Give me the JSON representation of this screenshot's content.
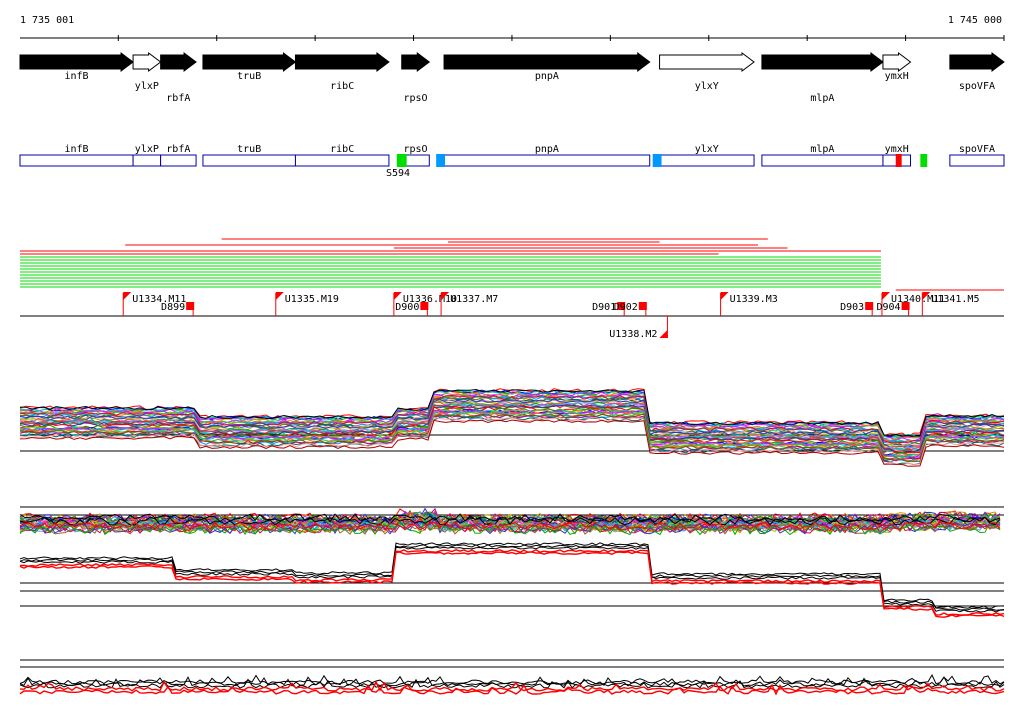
{
  "ruler": {
    "start_label": "1 735 001",
    "end_label": "1 745 000",
    "start": 1735001,
    "end": 1745000
  },
  "colors": {
    "gene_fill": "#000000",
    "gene_hollow": "#ffffff",
    "gene_box": "#0000aa",
    "mark_green": "#00dd00",
    "mark_blue": "#0099ff",
    "mark_red": "#ff0000",
    "flag_red": "#ff0000"
  },
  "genes": [
    {
      "name": "infB",
      "start": 1735001,
      "end": 1736150,
      "strand": "+",
      "filled": true,
      "label_row": 1
    },
    {
      "name": "ylxP",
      "start": 1736150,
      "end": 1736430,
      "strand": "+",
      "filled": false,
      "label_row": 2
    },
    {
      "name": "rbfA",
      "start": 1736430,
      "end": 1736790,
      "strand": "+",
      "filled": true,
      "label_row": 3
    },
    {
      "name": "truB",
      "start": 1736860,
      "end": 1737800,
      "strand": "+",
      "filled": true,
      "label_row": 1
    },
    {
      "name": "ribC",
      "start": 1737800,
      "end": 1738750,
      "strand": "+",
      "filled": true,
      "label_row": 2
    },
    {
      "name": "rpsO",
      "start": 1738880,
      "end": 1739160,
      "strand": "+",
      "filled": true,
      "label_row": 3
    },
    {
      "name": "pnpA",
      "start": 1739310,
      "end": 1741400,
      "strand": "+",
      "filled": true,
      "label_row": 1
    },
    {
      "name": "ylxY",
      "start": 1741500,
      "end": 1742460,
      "strand": "+",
      "filled": false,
      "label_row": 2
    },
    {
      "name": "mlpA",
      "start": 1742540,
      "end": 1743770,
      "strand": "+",
      "filled": true,
      "label_row": 3
    },
    {
      "name": "ymxH",
      "start": 1743770,
      "end": 1744050,
      "strand": "+",
      "filled": false,
      "label_row": 1
    },
    {
      "name": "spoVFA",
      "start": 1744450,
      "end": 1745000,
      "strand": "+",
      "filled": true,
      "label_row": 2
    }
  ],
  "box_marks": [
    {
      "start": 1738830,
      "end": 1738930,
      "color": "green"
    },
    {
      "start": 1739230,
      "end": 1739320,
      "color": "blue"
    },
    {
      "start": 1741430,
      "end": 1741520,
      "color": "blue"
    },
    {
      "start": 1743900,
      "end": 1743960,
      "color": "red"
    },
    {
      "start": 1744150,
      "end": 1744220,
      "color": "green"
    }
  ],
  "box_labels": [
    {
      "text": "S594",
      "pos": 1738720
    }
  ],
  "feature_lines": [
    {
      "start": 1737050,
      "end": 1742600,
      "color": "red"
    },
    {
      "start": 1739350,
      "end": 1741500,
      "color": "red"
    },
    {
      "start": 1736070,
      "end": 1742500,
      "color": "red"
    },
    {
      "start": 1738800,
      "end": 1742800,
      "color": "red"
    },
    {
      "start": 1735001,
      "end": 1743750,
      "color": "red"
    },
    {
      "start": 1735001,
      "end": 1742100,
      "color": "red"
    },
    {
      "start": 1735001,
      "end": 1743750,
      "color": "green"
    },
    {
      "start": 1735001,
      "end": 1743750,
      "color": "green"
    },
    {
      "start": 1735001,
      "end": 1743750,
      "color": "green"
    },
    {
      "start": 1735001,
      "end": 1743750,
      "color": "green"
    },
    {
      "start": 1735001,
      "end": 1743750,
      "color": "green"
    },
    {
      "start": 1735001,
      "end": 1743750,
      "color": "green"
    },
    {
      "start": 1735001,
      "end": 1743750,
      "color": "green"
    },
    {
      "start": 1735001,
      "end": 1743750,
      "color": "green"
    },
    {
      "start": 1735001,
      "end": 1743750,
      "color": "green"
    },
    {
      "start": 1735001,
      "end": 1743750,
      "color": "green"
    },
    {
      "start": 1735001,
      "end": 1743750,
      "color": "green"
    },
    {
      "start": 1743900,
      "end": 1745000,
      "color": "red"
    }
  ],
  "units": [
    {
      "label": "U1334.M11",
      "pos": 1736050,
      "below": false
    },
    {
      "label": "U1335.M19",
      "pos": 1737600,
      "below": false
    },
    {
      "label": "U1336.M10",
      "pos": 1738800,
      "below": false
    },
    {
      "label": "U1337.M7",
      "pos": 1739280,
      "below": false
    },
    {
      "label": "U1339.M3",
      "pos": 1742120,
      "below": false
    },
    {
      "label": "U1340.M11",
      "pos": 1743760,
      "below": false
    },
    {
      "label": "U1341.M5",
      "pos": 1744170,
      "below": false
    },
    {
      "label": "U1338.M2",
      "pos": 1741580,
      "below": true
    }
  ],
  "downs": [
    {
      "label": "D899",
      "pos": 1736730
    },
    {
      "label": "D900",
      "pos": 1739110
    },
    {
      "label": "D901",
      "pos": 1741110
    },
    {
      "label": "D902",
      "pos": 1741330
    },
    {
      "label": "D903",
      "pos": 1743630
    },
    {
      "label": "D904",
      "pos": 1744000
    }
  ],
  "expression_levels": {
    "breakpoints": [
      1735001,
      1736780,
      1738800,
      1739150,
      1741390,
      1743750,
      1744150,
      1744200,
      1745000
    ],
    "means": [
      422,
      431,
      423,
      405,
      437,
      449,
      430,
      430
    ]
  },
  "ratio_levels": {
    "breakpoints": [
      1735001,
      1736560,
      1737800,
      1738800,
      1741390,
      1743750,
      1744300,
      1745000
    ],
    "means": [
      562,
      574,
      577,
      548,
      578,
      604,
      611
    ]
  }
}
